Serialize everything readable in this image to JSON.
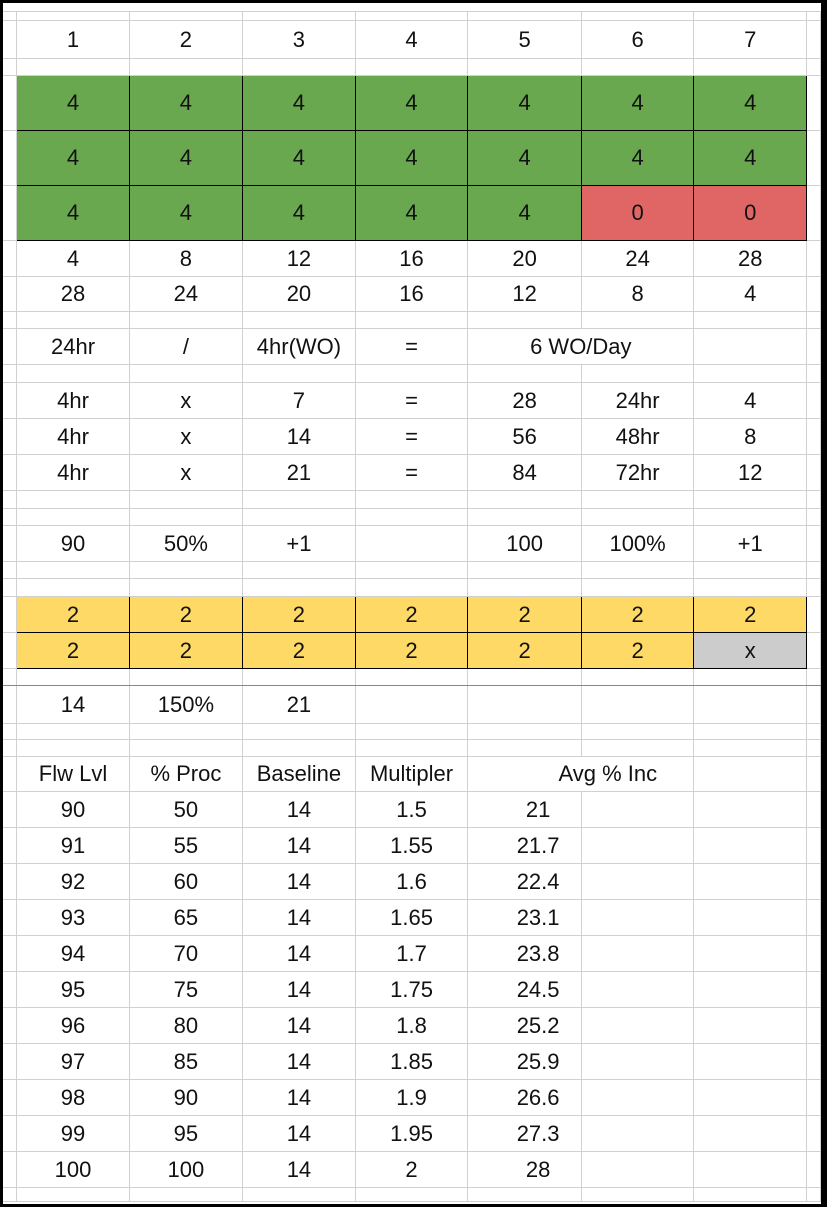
{
  "colors": {
    "green": "#6aa84f",
    "red": "#e06666",
    "yellow": "#ffd966",
    "gray": "#cccccc"
  },
  "day_header": [
    "1",
    "2",
    "3",
    "4",
    "5",
    "6",
    "7"
  ],
  "green_block": [
    [
      "4",
      "4",
      "4",
      "4",
      "4",
      "4",
      "4"
    ],
    [
      "4",
      "4",
      "4",
      "4",
      "4",
      "4",
      "4"
    ],
    [
      "4",
      "4",
      "4",
      "4",
      "4",
      "0",
      "0"
    ]
  ],
  "cumulative_row": [
    "4",
    "8",
    "12",
    "16",
    "20",
    "24",
    "28"
  ],
  "remaining_row": [
    "28",
    "24",
    "20",
    "16",
    "12",
    "8",
    "4"
  ],
  "formula_row": {
    "c1": "24hr",
    "c2": "/",
    "c3": "4hr(WO)",
    "c4": "=",
    "c5": "6 WO/Day"
  },
  "multiply_rows": [
    [
      "4hr",
      "x",
      "7",
      "=",
      "28",
      "24hr",
      "4"
    ],
    [
      "4hr",
      "x",
      "14",
      "=",
      "56",
      "48hr",
      "8"
    ],
    [
      "4hr",
      "x",
      "21",
      "=",
      "84",
      "72hr",
      "12"
    ]
  ],
  "level_row": [
    "90",
    "50%",
    "+1",
    "",
    "100",
    "100%",
    "+1"
  ],
  "yellow_block": [
    [
      "2",
      "2",
      "2",
      "2",
      "2",
      "2",
      "2"
    ],
    [
      "2",
      "2",
      "2",
      "2",
      "2",
      "2",
      "x"
    ]
  ],
  "result_row": [
    "14",
    "150%",
    "21",
    "",
    "",
    "",
    ""
  ],
  "table": {
    "headers": [
      "Flw Lvl",
      "% Proc",
      "Baseline",
      "Multipler",
      "Avg % Inc"
    ],
    "rows": [
      [
        "90",
        "50",
        "14",
        "1.5",
        "21"
      ],
      [
        "91",
        "55",
        "14",
        "1.55",
        "21.7"
      ],
      [
        "92",
        "60",
        "14",
        "1.6",
        "22.4"
      ],
      [
        "93",
        "65",
        "14",
        "1.65",
        "23.1"
      ],
      [
        "94",
        "70",
        "14",
        "1.7",
        "23.8"
      ],
      [
        "95",
        "75",
        "14",
        "1.75",
        "24.5"
      ],
      [
        "96",
        "80",
        "14",
        "1.8",
        "25.2"
      ],
      [
        "97",
        "85",
        "14",
        "1.85",
        "25.9"
      ],
      [
        "98",
        "90",
        "14",
        "1.9",
        "26.6"
      ],
      [
        "99",
        "95",
        "14",
        "1.95",
        "27.3"
      ],
      [
        "100",
        "100",
        "14",
        "2",
        "28"
      ]
    ]
  }
}
